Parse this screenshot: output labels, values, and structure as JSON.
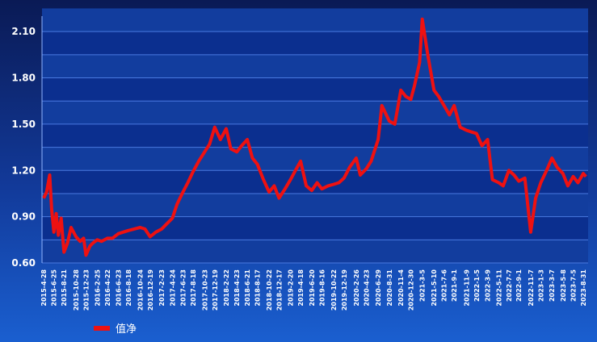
{
  "chart_data": {
    "type": "line",
    "title": "",
    "xlabel": "",
    "ylabel": "",
    "ylim": [
      0.6,
      2.2
    ],
    "y_ticks": [
      "0.60",
      "0.90",
      "1.20",
      "1.50",
      "1.80",
      "2.10"
    ],
    "y_tick_values": [
      0.6,
      0.9,
      1.2,
      1.5,
      1.8,
      2.1
    ],
    "grid": true,
    "legend_position": "bottom-left",
    "colors": {
      "line": "#ee1111",
      "grid": "#4a7ae0",
      "plot_bg": "#0b2f8f",
      "band": "#123d9e"
    },
    "x_ticks": [
      "2015-4-28",
      "2015-6-25",
      "2015-8-21",
      "2015-10-28",
      "2015-12-23",
      "2016-2-25",
      "2016-4-22",
      "2016-6-23",
      "2016-8-18",
      "2016-10-24",
      "2016-12-19",
      "2017-2-23",
      "2017-4-24",
      "2017-6-23",
      "2017-8-18",
      "2017-10-23",
      "2017-12-19",
      "2018-2-22",
      "2018-4-23",
      "2018-6-21",
      "2018-8-17",
      "2018-10-22",
      "2018-12-17",
      "2019-2-20",
      "2019-4-18",
      "2019-6-20",
      "2019-8-16",
      "2019-10-22",
      "2019-12-19",
      "2020-2-26",
      "2020-4-23",
      "2020-6-29",
      "2020-8-31",
      "2020-11-4",
      "2020-12-30",
      "2021-3-5",
      "2021-5-10",
      "2021-7-6",
      "2021-9-1",
      "2021-11-9",
      "2022-1-5",
      "2022-3-9",
      "2022-5-11",
      "2022-7-7",
      "2022-9-1",
      "2022-11-7",
      "2023-1-3",
      "2023-3-7",
      "2023-5-8",
      "2023-7-5",
      "2023-8-31"
    ],
    "series": [
      {
        "name": "值净",
        "x": [
          "2015-4-28",
          "2015-5-15",
          "2015-6-1",
          "2015-6-12",
          "2015-6-25",
          "2015-7-8",
          "2015-7-20",
          "2015-8-5",
          "2015-8-21",
          "2015-9-10",
          "2015-9-30",
          "2015-10-28",
          "2015-11-20",
          "2015-12-10",
          "2015-12-23",
          "2016-1-15",
          "2016-2-1",
          "2016-2-25",
          "2016-3-20",
          "2016-4-22",
          "2016-5-20",
          "2016-6-23",
          "2016-7-20",
          "2016-8-18",
          "2016-9-20",
          "2016-10-24",
          "2016-11-20",
          "2016-12-19",
          "2017-1-20",
          "2017-2-23",
          "2017-3-20",
          "2017-4-24",
          "2017-5-20",
          "2017-6-23",
          "2017-7-20",
          "2017-8-18",
          "2017-9-20",
          "2017-10-23",
          "2017-11-20",
          "2017-12-19",
          "2018-1-20",
          "2018-2-22",
          "2018-3-20",
          "2018-4-23",
          "2018-5-20",
          "2018-6-21",
          "2018-7-20",
          "2018-8-17",
          "2018-9-20",
          "2018-10-22",
          "2018-11-20",
          "2018-12-17",
          "2019-1-20",
          "2019-2-20",
          "2019-3-20",
          "2019-4-18",
          "2019-5-20",
          "2019-6-20",
          "2019-7-20",
          "2019-8-16",
          "2019-9-20",
          "2019-10-22",
          "2019-11-20",
          "2019-12-19",
          "2020-1-20",
          "2020-2-26",
          "2020-3-20",
          "2020-4-23",
          "2020-5-20",
          "2020-6-29",
          "2020-7-20",
          "2020-8-31",
          "2020-10-1",
          "2020-11-4",
          "2020-12-1",
          "2020-12-30",
          "2021-1-20",
          "2021-2-18",
          "2021-3-5",
          "2021-4-5",
          "2021-5-10",
          "2021-6-5",
          "2021-7-6",
          "2021-8-5",
          "2021-9-1",
          "2021-10-5",
          "2021-11-9",
          "2021-12-5",
          "2022-1-5",
          "2022-2-5",
          "2022-3-9",
          "2022-4-5",
          "2022-5-11",
          "2022-6-5",
          "2022-7-7",
          "2022-8-5",
          "2022-9-1",
          "2022-10-5",
          "2022-11-7",
          "2022-12-5",
          "2023-1-3",
          "2023-2-5",
          "2023-3-7",
          "2023-4-5",
          "2023-5-8",
          "2023-6-5",
          "2023-7-5",
          "2023-8-1",
          "2023-8-31",
          "2023-9-15"
        ],
        "values": [
          1.02,
          1.06,
          1.17,
          0.95,
          0.8,
          0.92,
          0.78,
          0.89,
          0.67,
          0.73,
          0.83,
          0.77,
          0.74,
          0.76,
          0.65,
          0.71,
          0.73,
          0.75,
          0.74,
          0.76,
          0.76,
          0.79,
          0.8,
          0.81,
          0.82,
          0.83,
          0.82,
          0.77,
          0.8,
          0.82,
          0.85,
          0.89,
          0.98,
          1.06,
          1.12,
          1.19,
          1.26,
          1.32,
          1.37,
          1.48,
          1.4,
          1.47,
          1.34,
          1.32,
          1.36,
          1.4,
          1.28,
          1.24,
          1.14,
          1.06,
          1.1,
          1.02,
          1.08,
          1.14,
          1.2,
          1.26,
          1.1,
          1.07,
          1.12,
          1.08,
          1.1,
          1.11,
          1.12,
          1.15,
          1.22,
          1.28,
          1.17,
          1.21,
          1.26,
          1.4,
          1.62,
          1.52,
          1.5,
          1.72,
          1.68,
          1.66,
          1.75,
          1.9,
          2.18,
          1.95,
          1.72,
          1.68,
          1.62,
          1.56,
          1.62,
          1.48,
          1.46,
          1.45,
          1.44,
          1.36,
          1.4,
          1.14,
          1.12,
          1.1,
          1.2,
          1.17,
          1.13,
          1.15,
          0.8,
          1.02,
          1.12,
          1.2,
          1.28,
          1.22,
          1.18,
          1.1,
          1.16,
          1.12,
          1.18,
          1.16
        ]
      }
    ]
  }
}
